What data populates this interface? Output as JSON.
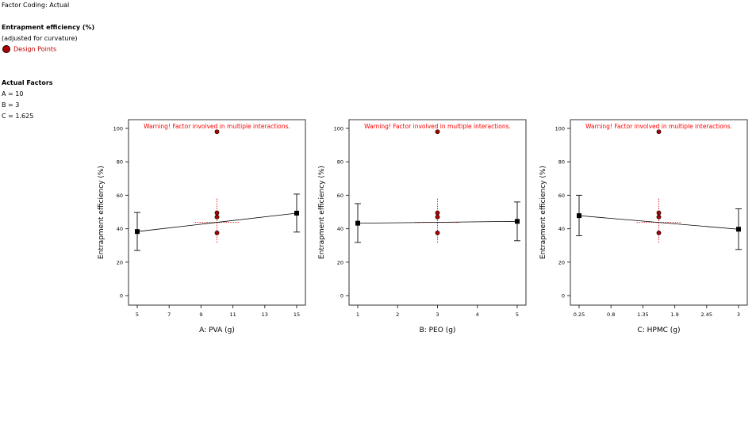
{
  "header": {
    "factor_coding": "Factor Coding: Actual",
    "response_title": "Entrapment efficiency (%)",
    "response_note": "(adjusted for curvature)",
    "legend_label": "Design Points",
    "actual_factors_title": "Actual Factors",
    "factors": [
      "A = 10",
      "B = 3",
      "C = 1.625"
    ]
  },
  "colors": {
    "design_point": "#b00000",
    "warning": "#ff0000",
    "center_ci": "#e03030",
    "line": "#000000"
  },
  "chart_data": [
    {
      "type": "line",
      "title": "Warning! Factor involved in multiple interactions.",
      "xlabel": "A: PVA (g)",
      "ylabel": "Entrapment efficiency (%)",
      "xlim": [
        5,
        15
      ],
      "ylim": [
        0,
        100
      ],
      "xticks": [
        5,
        7,
        9,
        11,
        13,
        15
      ],
      "xtick_labels": [
        "5",
        "7",
        "9",
        "11",
        "13",
        "15"
      ],
      "yticks": [
        0,
        20,
        40,
        60,
        80,
        100
      ],
      "effect": [
        {
          "x": 5,
          "y": 38.3,
          "lo": 27,
          "hi": 49.7
        },
        {
          "x": 15,
          "y": 49.3,
          "lo": 38,
          "hi": 60.7
        }
      ],
      "center": {
        "x": 10,
        "y": 43.8,
        "lo": 31,
        "hi": 58
      },
      "design_points": [
        {
          "x": 10,
          "y": 98
        },
        {
          "x": 10,
          "y": 49.5
        },
        {
          "x": 10,
          "y": 47
        },
        {
          "x": 10,
          "y": 37.5
        }
      ]
    },
    {
      "type": "line",
      "title": "Warning! Factor involved in multiple interactions.",
      "xlabel": "B: PEO (g)",
      "ylabel": "Entrapment efficiency (%)",
      "xlim": [
        1,
        5
      ],
      "ylim": [
        0,
        100
      ],
      "xticks": [
        1,
        2,
        3,
        4,
        5
      ],
      "xtick_labels": [
        "1",
        "2",
        "3",
        "4",
        "5"
      ],
      "yticks": [
        0,
        20,
        40,
        60,
        80,
        100
      ],
      "effect": [
        {
          "x": 1,
          "y": 43.3,
          "lo": 31.8,
          "hi": 55
        },
        {
          "x": 5,
          "y": 44.4,
          "lo": 32.8,
          "hi": 56
        }
      ],
      "center": {
        "x": 3,
        "y": 43.8,
        "lo": 31,
        "hi": 58
      },
      "design_points": [
        {
          "x": 3,
          "y": 98
        },
        {
          "x": 3,
          "y": 49.5
        },
        {
          "x": 3,
          "y": 47
        },
        {
          "x": 3,
          "y": 37.5
        }
      ]
    },
    {
      "type": "line",
      "title": "Warning! Factor involved in multiple interactions.",
      "xlabel": "C: HPMC (g)",
      "ylabel": "Entrapment efficiency (%)",
      "xlim": [
        0.25,
        3
      ],
      "ylim": [
        0,
        100
      ],
      "xticks": [
        0.25,
        0.8,
        1.35,
        1.9,
        2.45,
        3
      ],
      "xtick_labels": [
        "0.25",
        "0.8",
        "1.35",
        "1.9",
        "2.45",
        "3"
      ],
      "yticks": [
        0,
        20,
        40,
        60,
        80,
        100
      ],
      "effect": [
        {
          "x": 0.25,
          "y": 47.8,
          "lo": 35.8,
          "hi": 60
        },
        {
          "x": 3,
          "y": 39.7,
          "lo": 27.6,
          "hi": 51.9
        }
      ],
      "center": {
        "x": 1.625,
        "y": 43.8,
        "lo": 31,
        "hi": 58
      },
      "design_points": [
        {
          "x": 1.625,
          "y": 98
        },
        {
          "x": 1.625,
          "y": 49.5
        },
        {
          "x": 1.625,
          "y": 47
        },
        {
          "x": 1.625,
          "y": 37.5
        }
      ]
    }
  ]
}
